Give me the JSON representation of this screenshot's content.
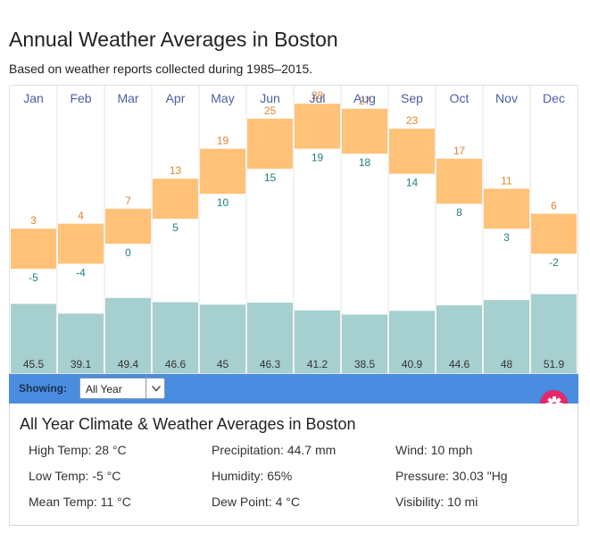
{
  "header": {
    "title": "Annual Weather Averages in Boston",
    "subtitle": "Based on weather reports collected during 1985–2015."
  },
  "controls": {
    "showing_label": "Showing:",
    "period_value": "All Year",
    "period_options": [
      "All Year"
    ]
  },
  "summary": {
    "title": "All Year Climate & Weather Averages in Boston",
    "stats": [
      [
        "High Temp: 28 °C",
        "Precipitation: 44.7 mm",
        "Wind: 10 mph"
      ],
      [
        "Low Temp: -5 °C",
        "Humidity: 65%",
        "Pressure: 30.03 \"Hg"
      ],
      [
        "Mean Temp: 11 °C",
        "Dew Point: 4 °C",
        "Visibility: 10 mi"
      ]
    ]
  },
  "colors": {
    "high": "#e0862a",
    "low": "#1f7f82",
    "temp_band": "#ffc278",
    "precip_bar": "#a6cfcf",
    "month_label": "#4b5fa8",
    "controls_bar": "#4a8de0",
    "settings_button": "#e7266b"
  },
  "icons": {
    "settings": "gear-icon",
    "dropdown": "chevron-down-icon"
  },
  "chart_data": {
    "type": "bar",
    "categories": [
      "Jan",
      "Feb",
      "Mar",
      "Apr",
      "May",
      "Jun",
      "Jul",
      "Aug",
      "Sep",
      "Oct",
      "Nov",
      "Dec"
    ],
    "series": [
      {
        "values": [
          3,
          4,
          7,
          13,
          19,
          25,
          28,
          27,
          23,
          17,
          11,
          6
        ]
      },
      {
        "values": [
          -5,
          -4,
          0,
          5,
          10,
          15,
          19,
          18,
          14,
          8,
          3,
          -2
        ]
      },
      {
        "values": [
          45.5,
          39.1,
          49.4,
          46.6,
          45,
          46.3,
          41.2,
          38.5,
          40.9,
          44.6,
          48,
          51.9
        ]
      }
    ],
    "title": "",
    "xlabel": "",
    "ylabel": ""
  }
}
